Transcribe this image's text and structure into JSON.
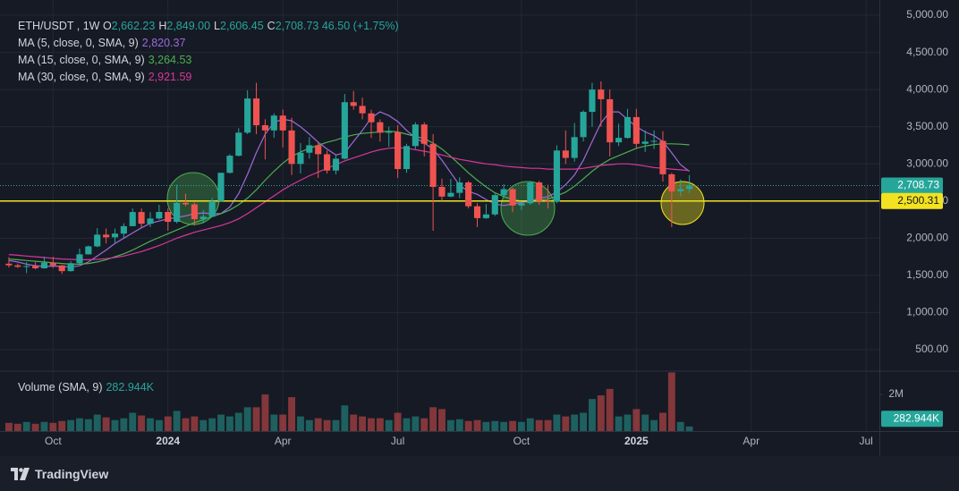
{
  "legend": {
    "title": "ETH/USDT , 1W",
    "ohlc": [
      {
        "key": "O",
        "value": "2,662.23"
      },
      {
        "key": "H",
        "value": "2,849.00"
      },
      {
        "key": "L",
        "value": "2,606.45"
      },
      {
        "key": "C",
        "value": "2,708.73"
      }
    ],
    "change": "46.50 (+1.75%)"
  },
  "chart_data": {
    "type": "candlestick",
    "categories": [
      null,
      null,
      null,
      null,
      null,
      "Oct",
      null,
      null,
      null,
      null,
      null,
      null,
      null,
      null,
      null,
      null,
      null,
      null,
      "2024",
      null,
      null,
      null,
      null,
      null,
      null,
      null,
      null,
      null,
      null,
      null,
      null,
      "Apr",
      null,
      null,
      null,
      null,
      null,
      null,
      null,
      null,
      null,
      null,
      null,
      null,
      "Jul",
      null,
      null,
      null,
      null,
      null,
      null,
      null,
      null,
      null,
      null,
      null,
      null,
      null,
      "Oct",
      null,
      null,
      null,
      null,
      null,
      null,
      null,
      null,
      null,
      null,
      null,
      null,
      "2025",
      null,
      null,
      null,
      null,
      null,
      null,
      null,
      null,
      null,
      null,
      null,
      null,
      "Apr",
      null,
      null,
      null,
      null,
      null,
      null,
      null,
      null,
      null,
      null,
      null,
      null,
      "Jul",
      null
    ],
    "series": [
      {
        "name": "ETH/USDT",
        "up_color": "#26a69a",
        "down_color": "#ef5350",
        "open": [
          1657,
          1635,
          1615,
          1625,
          1595,
          1671,
          1634,
          1557,
          1664,
          1783,
          1890,
          2048,
          2012,
          2062,
          2162,
          2352,
          2195,
          2265,
          2353,
          2220,
          2475,
          2455,
          2256,
          2290,
          2500,
          2880,
          3110,
          3420,
          3880,
          3520,
          3450,
          3650,
          3450,
          3000,
          3150,
          3250,
          3130,
          2910,
          3070,
          3830,
          3780,
          3680,
          3560,
          3420,
          3430,
          2930,
          3240,
          3530,
          3270,
          2690,
          2560,
          2610,
          2750,
          2430,
          2270,
          2320,
          2580,
          2660,
          2440,
          2470,
          2750,
          2500,
          2490,
          3180,
          3080,
          3360,
          3700,
          4000,
          3870,
          3290,
          3350,
          3630,
          3270,
          3300,
          3310,
          2860,
          2630,
          2662.23,
          null,
          null,
          null,
          null,
          null,
          null,
          null,
          null,
          null,
          null,
          null,
          null,
          null,
          null,
          null,
          null,
          null,
          null,
          null,
          null,
          null
        ],
        "high": [
          1745,
          1660,
          1680,
          1680,
          1750,
          1750,
          1640,
          1690,
          1860,
          1900,
          2135,
          2130,
          2130,
          2200,
          2400,
          2400,
          2350,
          2450,
          2400,
          2720,
          2600,
          2480,
          2380,
          2540,
          2880,
          3130,
          3480,
          3990,
          4090,
          3600,
          3680,
          3730,
          3620,
          3280,
          3360,
          3290,
          3180,
          3120,
          3940,
          3980,
          3890,
          3730,
          3600,
          3500,
          3520,
          3270,
          3560,
          3560,
          3400,
          2800,
          2800,
          2820,
          2770,
          2470,
          2460,
          2600,
          2730,
          2680,
          2480,
          2770,
          2770,
          2720,
          3250,
          3450,
          3550,
          3720,
          4090,
          4110,
          4000,
          3540,
          3740,
          3740,
          3450,
          3450,
          3440,
          2880,
          2790,
          2849.0,
          null,
          null,
          null,
          null,
          null,
          null,
          null,
          null,
          null,
          null,
          null,
          null,
          null,
          null,
          null,
          null,
          null,
          null,
          null,
          null,
          null
        ],
        "low": [
          1605,
          1600,
          1530,
          1580,
          1590,
          1600,
          1520,
          1550,
          1650,
          1780,
          1880,
          1930,
          1930,
          2000,
          2160,
          2140,
          2150,
          2250,
          2100,
          2200,
          2430,
          2170,
          2200,
          2280,
          2490,
          2870,
          3100,
          3400,
          3400,
          3060,
          3350,
          3220,
          2850,
          2870,
          3070,
          2810,
          2870,
          2860,
          3060,
          3730,
          3600,
          3350,
          3300,
          3230,
          2810,
          2880,
          3200,
          3100,
          2100,
          2500,
          2550,
          2540,
          2400,
          2150,
          2260,
          2300,
          2560,
          2350,
          2380,
          2450,
          2450,
          2400,
          2470,
          3000,
          3030,
          3300,
          3500,
          3500,
          3100,
          3240,
          3340,
          3200,
          3160,
          3200,
          2760,
          2150,
          2560,
          2606.45,
          null,
          null,
          null,
          null,
          null,
          null,
          null,
          null,
          null,
          null,
          null,
          null,
          null,
          null,
          null,
          null,
          null,
          null,
          null,
          null,
          null
        ],
        "close": [
          1635,
          1615,
          1625,
          1595,
          1671,
          1634,
          1557,
          1664,
          1783,
          1890,
          2048,
          2012,
          2062,
          2162,
          2352,
          2195,
          2265,
          2353,
          2220,
          2475,
          2455,
          2256,
          2290,
          2500,
          2880,
          3110,
          3420,
          3880,
          3520,
          3450,
          3650,
          3450,
          3000,
          3150,
          3250,
          3130,
          2910,
          3070,
          3830,
          3780,
          3680,
          3560,
          3420,
          3430,
          2930,
          3240,
          3530,
          3270,
          2690,
          2560,
          2610,
          2750,
          2430,
          2270,
          2320,
          2580,
          2660,
          2440,
          2470,
          2750,
          2500,
          2490,
          3180,
          3080,
          3360,
          3700,
          4000,
          3870,
          3290,
          3350,
          3630,
          3270,
          3300,
          3310,
          2860,
          2630,
          2662,
          2708.73,
          null,
          null,
          null,
          null,
          null,
          null,
          null,
          null,
          null,
          null,
          null,
          null,
          null,
          null,
          null,
          null,
          null,
          null,
          null,
          null,
          null
        ]
      }
    ],
    "lines": [
      {
        "name": "MA (5, close, 0, SMA, 9)",
        "legend_value": "2,820.37",
        "color": "#9c6bd9",
        "values": [
          1700,
          1680,
          1650,
          1630,
          1620,
          1625,
          1620,
          1610,
          1630,
          1680,
          1760,
          1840,
          1930,
          2000,
          2070,
          2140,
          2200,
          2230,
          2260,
          2280,
          2300,
          2330,
          2340,
          2330,
          2330,
          2420,
          2600,
          2860,
          3150,
          3400,
          3560,
          3600,
          3580,
          3500,
          3400,
          3290,
          3200,
          3120,
          3150,
          3300,
          3450,
          3620,
          3700,
          3650,
          3570,
          3450,
          3350,
          3280,
          3200,
          3050,
          2880,
          2710,
          2630,
          2590,
          2520,
          2460,
          2440,
          2460,
          2480,
          2500,
          2540,
          2560,
          2620,
          2720,
          2850,
          3050,
          3300,
          3550,
          3700,
          3700,
          3600,
          3500,
          3430,
          3380,
          3300,
          3150,
          2990,
          2900,
          null,
          null,
          null,
          null,
          null,
          null,
          null,
          null,
          null,
          null,
          null,
          null,
          null,
          null,
          null,
          null,
          null,
          null,
          null,
          null,
          null
        ]
      },
      {
        "name": "MA (15, close, 0, SMA, 9)",
        "legend_value": "3,264.53",
        "color": "#4caf50",
        "values": [
          1720,
          1710,
          1700,
          1690,
          1680,
          1670,
          1660,
          1650,
          1650,
          1660,
          1680,
          1710,
          1750,
          1790,
          1840,
          1900,
          1960,
          2010,
          2060,
          2110,
          2160,
          2210,
          2250,
          2290,
          2330,
          2380,
          2450,
          2540,
          2650,
          2780,
          2900,
          3010,
          3100,
          3160,
          3210,
          3250,
          3290,
          3320,
          3360,
          3390,
          3410,
          3420,
          3430,
          3440,
          3430,
          3400,
          3370,
          3340,
          3280,
          3200,
          3100,
          2990,
          2880,
          2780,
          2690,
          2610,
          2560,
          2520,
          2500,
          2500,
          2510,
          2530,
          2570,
          2620,
          2700,
          2800,
          2900,
          2990,
          3060,
          3110,
          3160,
          3210,
          3240,
          3260,
          3270,
          3270,
          3265,
          3255,
          null,
          null,
          null,
          null,
          null,
          null,
          null,
          null,
          null,
          null,
          null,
          null,
          null,
          null,
          null,
          null,
          null,
          null,
          null,
          null,
          null
        ]
      },
      {
        "name": "MA (30, close, 0, SMA, 9)",
        "legend_value": "2,921.59",
        "color": "#d6379a",
        "values": [
          1780,
          1770,
          1760,
          1750,
          1740,
          1730,
          1720,
          1715,
          1710,
          1710,
          1715,
          1725,
          1740,
          1760,
          1790,
          1820,
          1860,
          1900,
          1950,
          2000,
          2040,
          2080,
          2110,
          2140,
          2170,
          2210,
          2260,
          2330,
          2410,
          2490,
          2570,
          2650,
          2720,
          2780,
          2840,
          2890,
          2940,
          2990,
          3040,
          3080,
          3120,
          3160,
          3190,
          3210,
          3220,
          3210,
          3190,
          3170,
          3150,
          3120,
          3090,
          3060,
          3040,
          3020,
          3000,
          2990,
          2970,
          2960,
          2950,
          2940,
          2940,
          2930,
          2930,
          2930,
          2930,
          2940,
          2960,
          2980,
          2990,
          3000,
          3000,
          2990,
          2970,
          2950,
          2940,
          2930,
          2920,
          2910,
          null,
          null,
          null,
          null,
          null,
          null,
          null,
          null,
          null,
          null,
          null,
          null,
          null,
          null,
          null,
          null,
          null,
          null,
          null,
          null,
          null
        ]
      }
    ],
    "ylim": [
      211,
      5205
    ],
    "yticks": [
      {
        "value": 500,
        "label": "500.00"
      },
      {
        "value": 1000,
        "label": "1,000.00"
      },
      {
        "value": 1500,
        "label": "1,500.00"
      },
      {
        "value": 2000,
        "label": "2,000.00"
      },
      {
        "value": 2500,
        "label": "2,500.00"
      },
      {
        "value": 3000,
        "label": "3,000.00"
      },
      {
        "value": 3500,
        "label": "3,500.00"
      },
      {
        "value": 4000,
        "label": "4,000.00"
      },
      {
        "value": 4500,
        "label": "4,500.00"
      },
      {
        "value": 5000,
        "label": "5,000.00"
      }
    ],
    "grid": true,
    "last_price": {
      "value": 2708.73,
      "label": "2,708.73",
      "color": "#26a69a"
    },
    "level": {
      "value": 2500.31,
      "label": "2,500.31",
      "color": "#f2e21f"
    },
    "volume": {
      "title": "Volume (SMA, 9)",
      "values": [
        450000,
        400000,
        500000,
        400000,
        500000,
        450000,
        550000,
        600000,
        700000,
        650000,
        900000,
        750000,
        600000,
        700000,
        1000000,
        850000,
        700000,
        600000,
        800000,
        1100000,
        700000,
        800000,
        600000,
        700000,
        900000,
        800000,
        1000000,
        1300000,
        1300000,
        2000000,
        900000,
        900000,
        1850000,
        800000,
        600000,
        700000,
        600000,
        600000,
        1400000,
        900000,
        800000,
        700000,
        700000,
        600000,
        1000000,
        700000,
        800000,
        700000,
        1300000,
        1200000,
        600000,
        650000,
        550000,
        600000,
        500000,
        550000,
        500000,
        550000,
        500000,
        700000,
        600000,
        600000,
        900000,
        800000,
        900000,
        1000000,
        1750000,
        1950000,
        2300000,
        800000,
        900000,
        1200000,
        900000,
        600000,
        1000000,
        3200000,
        500000,
        250000,
        null,
        null,
        null,
        null,
        null,
        null,
        null,
        null,
        null,
        null,
        null,
        null,
        null,
        null,
        null,
        null,
        null,
        null,
        null,
        null,
        null
      ],
      "ylim": [
        0,
        3270000
      ],
      "yticks": [
        {
          "value": 2000000,
          "label": "2M"
        }
      ],
      "sma": {
        "value": 282944,
        "label": "282.944K",
        "color": "#26a69a"
      }
    }
  },
  "footer": "TradingView"
}
